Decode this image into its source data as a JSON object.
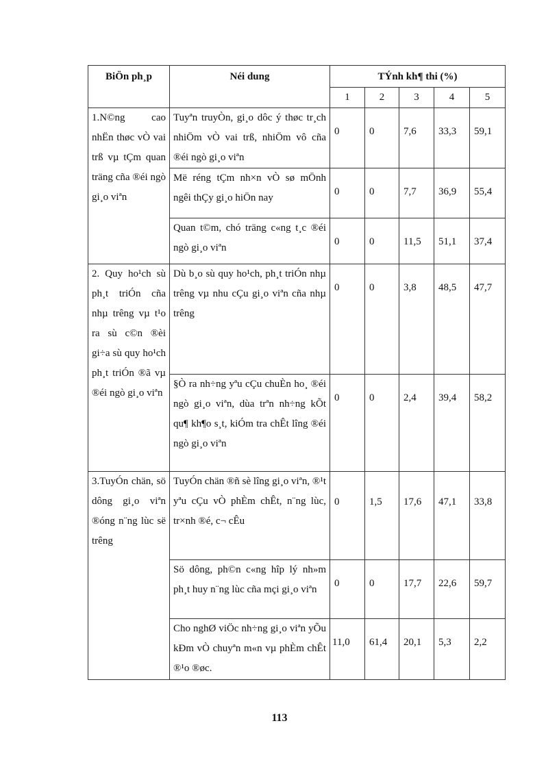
{
  "header": {
    "col_measure": "BiÖn ph¸p",
    "col_content": "Néi dung",
    "col_feasibility": "TÝnh kh¶ thi (%)",
    "levels": [
      "1",
      "2",
      "3",
      "4",
      "5"
    ]
  },
  "groups": [
    {
      "measure": "1.N©ng cao nhËn thøc vÒ vai trß vµ tÇm quan träng cña ®éi ngò gi¸o viªn",
      "rows": [
        {
          "content": "Tuyªn truyÒn, gi¸o dôc ý thøc tr¸ch nhiÖm vÒ vai trß, nhiÖm vô cña ®éi ngò gi¸o viªn",
          "values": [
            "0",
            "0",
            "7,6",
            "33,3",
            "59,1"
          ]
        },
        {
          "content": "Më réng tÇm nh×n vÒ sø mÖnh ngêi thÇy gi¸o hiÖn nay",
          "values": [
            "0",
            "0",
            "7,7",
            "36,9",
            "55,4"
          ]
        },
        {
          "content": "Quan t©m, chó träng c«ng t¸c ®éi ngò gi¸o viªn",
          "values": [
            "0",
            "0",
            "11,5",
            "51,1",
            "37,4"
          ]
        }
      ]
    },
    {
      "measure": "2. Quy ho¹ch sù ph¸t triÓn cña nhµ trêng vµ t¹o ra sù c©n ®èi gi÷a sù quy ho¹ch ph¸t triÓn ®ã vµ ®éi ngò gi¸o viªn",
      "rows": [
        {
          "content": "Dù b¸o sù quy ho¹ch, ph¸t triÓn nhµ trêng vµ nhu cÇu gi¸o viªn cña nhµ trêng",
          "values": [
            "0",
            "0",
            "3,8",
            "48,5",
            "47,7"
          ]
        },
        {
          "content": "§Ò ra nh÷ng yªu cÇu chuÈn ho¸ ®éi ngò gi¸o viªn, dùa trªn nh÷ng kÕt qu¶ kh¶o s¸t, kiÓm tra chÊt lîng ®éi ngò gi¸o viªn",
          "values": [
            "0",
            "0",
            "2,4",
            "39,4",
            "58,2"
          ]
        }
      ]
    },
    {
      "measure": "3.TuyÓn chän, sö dông gi¸o viªn ®óng n¨ng lùc së trêng",
      "rows": [
        {
          "content": "TuyÓn chän ®ñ sè lîng gi¸o viªn, ®¹t yªu cÇu vÒ phÈm chÊt, n¨ng lùc, tr×nh ®é, c¬ cÊu",
          "values": [
            "0",
            "1,5",
            "17,6",
            "47,1",
            "33,8"
          ]
        },
        {
          "content": "Sö dông, ph©n c«ng hîp lý nh»m ph¸t huy n¨ng lùc cña mçi gi¸o viªn",
          "values": [
            "0",
            "0",
            "17,7",
            "22,6",
            "59,7"
          ]
        },
        {
          "content": "Cho nghØ viÖc nh÷ng gi¸o viªn yÕu kÐm vÒ chuyªn m«n vµ phÈm chÊt ®¹o ®øc.",
          "values": [
            "11,0",
            "61,4",
            "20,1",
            "5,3",
            "2,2"
          ]
        }
      ]
    }
  ],
  "page_number": "113"
}
